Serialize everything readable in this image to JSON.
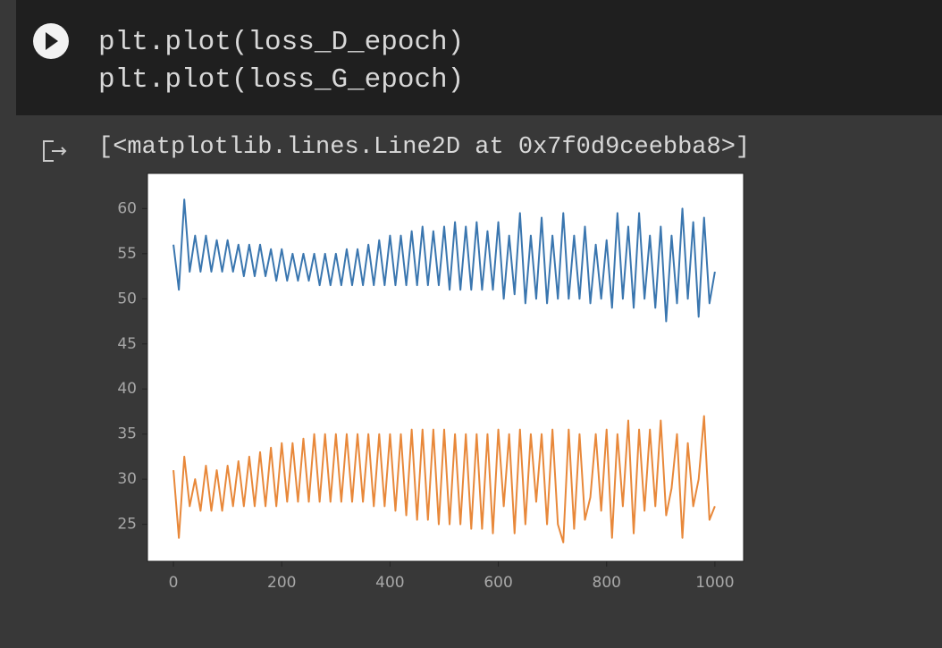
{
  "cell": {
    "code": [
      "plt.plot(loss_D_epoch)",
      "plt.plot(loss_G_epoch)"
    ],
    "output": "[<matplotlib.lines.Line2D at 0x7f0d9ceebba8>]"
  },
  "chart_data": {
    "type": "line",
    "x": [
      0,
      10,
      20,
      30,
      40,
      50,
      60,
      70,
      80,
      90,
      100,
      110,
      120,
      130,
      140,
      150,
      160,
      170,
      180,
      190,
      200,
      210,
      220,
      230,
      240,
      250,
      260,
      270,
      280,
      290,
      300,
      310,
      320,
      330,
      340,
      350,
      360,
      370,
      380,
      390,
      400,
      410,
      420,
      430,
      440,
      450,
      460,
      470,
      480,
      490,
      500,
      510,
      520,
      530,
      540,
      550,
      560,
      570,
      580,
      590,
      600,
      610,
      620,
      630,
      640,
      650,
      660,
      670,
      680,
      690,
      700,
      710,
      720,
      730,
      740,
      750,
      760,
      770,
      780,
      790,
      800,
      810,
      820,
      830,
      840,
      850,
      860,
      870,
      880,
      890,
      900,
      910,
      920,
      930,
      940,
      950,
      960,
      970,
      980,
      990,
      1000
    ],
    "series": [
      {
        "color": "#3a76af",
        "values": [
          56,
          51,
          61,
          53,
          57,
          53,
          57,
          53,
          56.5,
          53,
          56.5,
          53,
          56,
          52.5,
          56,
          52.5,
          56,
          52.5,
          55.5,
          52,
          55.5,
          52,
          55,
          52,
          55,
          52,
          55,
          51.5,
          55,
          51.5,
          55,
          51.5,
          55.5,
          51.5,
          55.5,
          51.5,
          56,
          51.5,
          56.5,
          51.5,
          57,
          51.5,
          57,
          51.5,
          57.5,
          51.5,
          58,
          51.5,
          57.5,
          51.5,
          58,
          51,
          58.5,
          51,
          58,
          51,
          58.5,
          51,
          57.5,
          51,
          58.5,
          50,
          57,
          50.5,
          59.5,
          49.5,
          57,
          50,
          59,
          49.5,
          57,
          50,
          59.5,
          50,
          57,
          50,
          58,
          49.5,
          56,
          50,
          56.5,
          49,
          59.5,
          50,
          58,
          49,
          59.5,
          50,
          57,
          49,
          58,
          47.5,
          57,
          49.5,
          60,
          50,
          58.5,
          48,
          59,
          49.5,
          53
        ]
      },
      {
        "color": "#e8883a",
        "values": [
          31,
          23.5,
          32.5,
          27,
          30,
          26.5,
          31.5,
          26.5,
          31,
          26.5,
          31.5,
          27,
          32,
          27,
          32.5,
          27,
          33,
          27,
          33.5,
          27,
          34,
          27.5,
          34,
          27.5,
          34.5,
          27.5,
          35,
          27.5,
          35,
          27.5,
          35,
          27.5,
          35,
          27.5,
          35,
          27.5,
          35,
          27,
          35,
          27,
          35,
          26.5,
          35,
          26,
          35.5,
          25.5,
          35.5,
          25.5,
          35.5,
          25,
          35.5,
          25,
          35,
          25,
          35,
          24.5,
          35,
          24.5,
          35,
          24,
          35.5,
          27,
          35,
          24,
          35.5,
          25,
          35,
          27.5,
          35,
          25,
          35.5,
          25,
          23,
          35.5,
          24.5,
          35,
          25.5,
          28,
          35,
          26.5,
          35.5,
          23.5,
          35,
          27,
          36.5,
          24,
          35.5,
          26.5,
          35.5,
          27,
          36.5,
          26,
          29,
          35,
          23.5,
          34,
          27,
          30,
          37,
          25.5,
          27
        ]
      }
    ],
    "xlim": [
      -48,
      1053
    ],
    "ylim": [
      20.9,
      63.9
    ],
    "xticks": [
      0,
      200,
      400,
      600,
      800,
      1000
    ],
    "yticks": [
      25,
      30,
      35,
      40,
      45,
      50,
      55,
      60
    ]
  }
}
